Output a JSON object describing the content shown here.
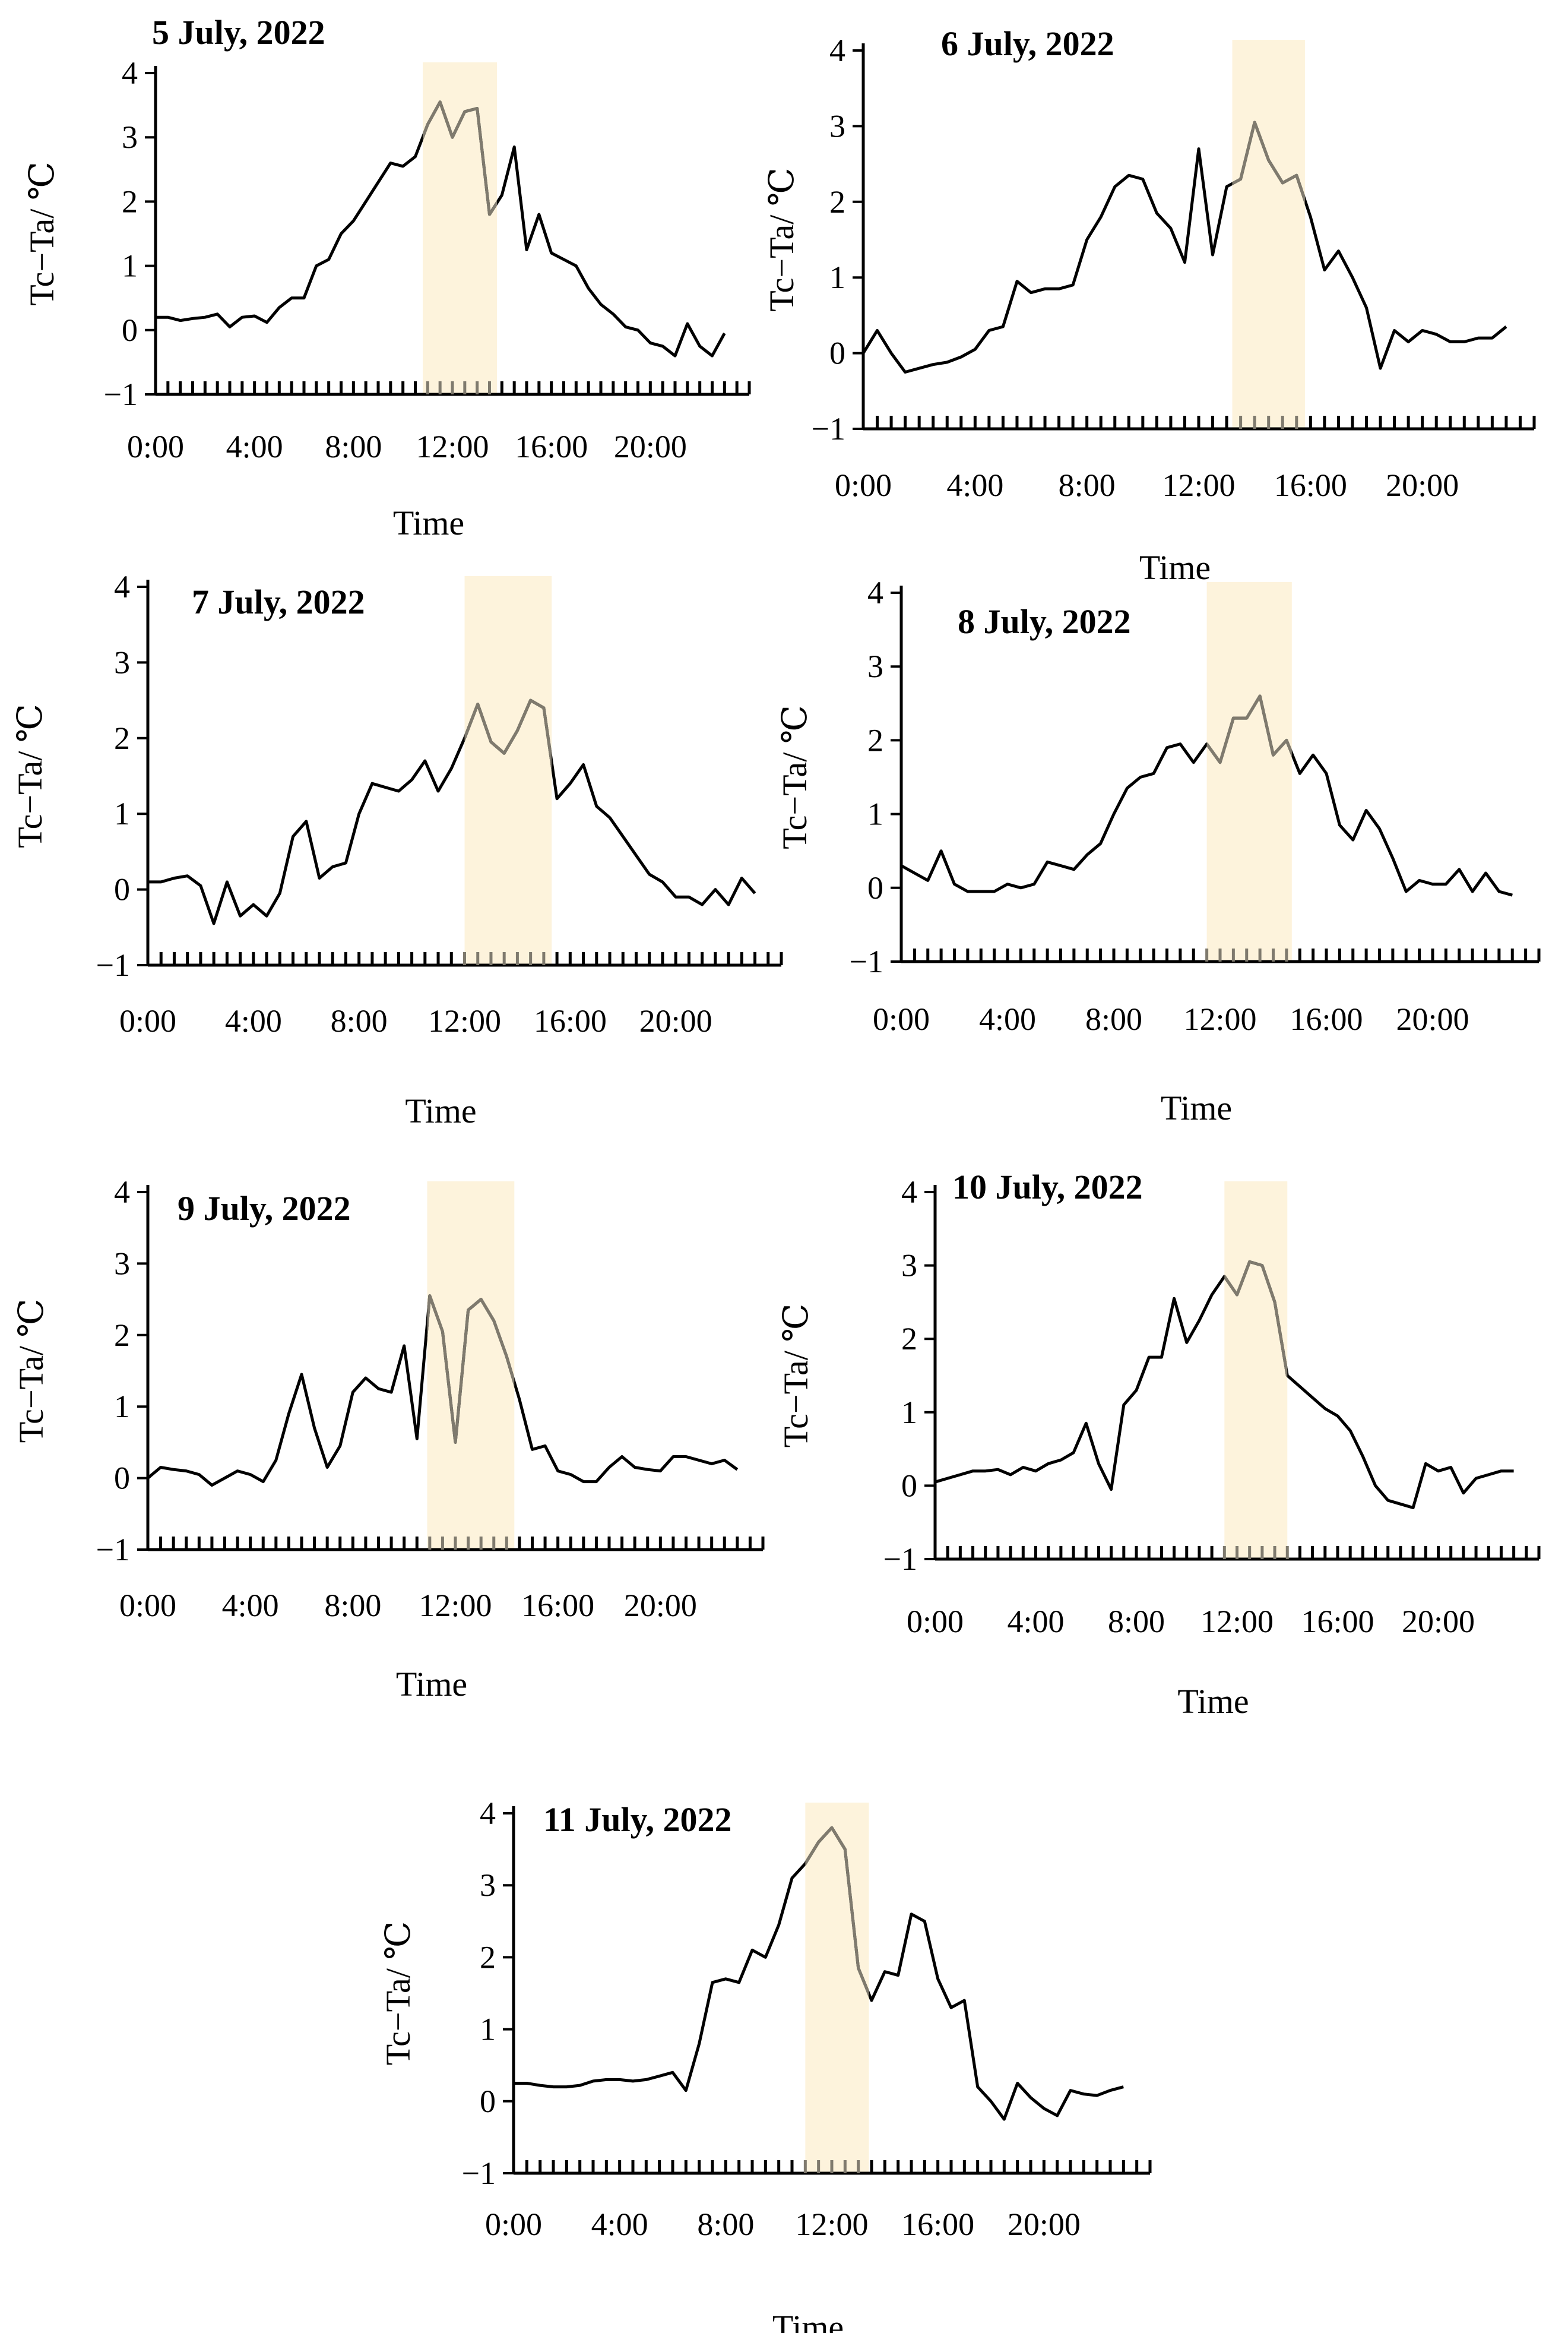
{
  "figure": {
    "x_tick_labels": [
      "0:00",
      "4:00",
      "8:00",
      "12:00",
      "16:00",
      "20:00"
    ],
    "y_tick_labels": [
      "4",
      "3",
      "2",
      "1",
      "0",
      "−1"
    ],
    "x_axis_title": "Time",
    "y_axis_title": "Tc−Ta/ ℃"
  },
  "colors": {
    "line": "#000000",
    "highlight": "#fdf3dc",
    "highlight_line": "#7f7a6e"
  },
  "chart_data": [
    {
      "type": "line",
      "title": "5 July, 2022",
      "xlabel": "Time",
      "ylabel": "Tc−Ta/ ℃",
      "ylim": [
        -1,
        4
      ],
      "xlim": [
        0,
        24
      ],
      "highlight": [
        10.8,
        13.8
      ],
      "x": [
        0,
        0.5,
        1,
        1.5,
        2,
        2.5,
        3,
        3.5,
        4,
        4.5,
        5,
        5.5,
        6,
        6.5,
        7,
        7.5,
        8,
        8.5,
        9,
        9.5,
        10,
        10.5,
        11,
        11.5,
        12,
        12.5,
        13,
        13.5,
        14,
        14.5,
        15,
        15.5,
        16,
        16.5,
        17,
        17.5,
        18,
        18.5,
        19,
        19.5,
        20,
        20.5,
        21,
        21.5,
        22,
        22.5,
        23
      ],
      "values": [
        0.2,
        0.2,
        0.15,
        0.18,
        0.2,
        0.25,
        0.05,
        0.2,
        0.22,
        0.12,
        0.35,
        0.5,
        0.5,
        1,
        1.1,
        1.5,
        1.7,
        2,
        2.3,
        2.6,
        2.55,
        2.7,
        3.2,
        3.55,
        3,
        3.4,
        3.45,
        1.8,
        2.1,
        2.85,
        1.25,
        1.8,
        1.2,
        1.1,
        1,
        0.65,
        0.4,
        0.25,
        0.05,
        0,
        -0.2,
        -0.25,
        -0.4,
        0.1,
        -0.25,
        -0.4,
        -0.05
      ]
    },
    {
      "type": "line",
      "title": "6 July, 2022",
      "xlabel": "Time",
      "ylabel": "Tc−Ta/ ℃",
      "ylim": [
        -1,
        4
      ],
      "xlim": [
        0,
        24
      ],
      "highlight": [
        13.2,
        15.8
      ],
      "x": [
        0,
        0.5,
        1,
        1.5,
        2,
        2.5,
        3,
        3.5,
        4,
        4.5,
        5,
        5.5,
        6,
        6.5,
        7,
        7.5,
        8,
        8.5,
        9,
        9.5,
        10,
        10.5,
        11,
        11.5,
        12,
        12.5,
        13,
        13.5,
        14,
        14.5,
        15,
        15.5,
        16,
        16.5,
        17,
        17.5,
        18,
        18.5,
        19,
        19.5,
        20,
        20.5,
        21,
        21.5,
        22,
        22.5,
        23
      ],
      "values": [
        0,
        0.3,
        0,
        -0.25,
        -0.2,
        -0.15,
        -0.12,
        -0.05,
        0.05,
        0.3,
        0.35,
        0.95,
        0.8,
        0.85,
        0.85,
        0.9,
        1.5,
        1.8,
        2.2,
        2.35,
        2.3,
        1.85,
        1.65,
        1.2,
        2.7,
        1.3,
        2.2,
        2.3,
        3.05,
        2.55,
        2.25,
        2.35,
        1.8,
        1.1,
        1.35,
        1,
        0.6,
        -0.2,
        0.3,
        0.15,
        0.3,
        0.25,
        0.15,
        0.15,
        0.2,
        0.2,
        0.35
      ]
    },
    {
      "type": "line",
      "title": "7 July, 2022",
      "xlabel": "Time",
      "ylabel": "Tc−Ta/ ℃",
      "ylim": [
        -1,
        4
      ],
      "xlim": [
        0,
        24
      ],
      "highlight": [
        12,
        15.3
      ],
      "x": [
        0,
        0.5,
        1,
        1.5,
        2,
        2.5,
        3,
        3.5,
        4,
        4.5,
        5,
        5.5,
        6,
        6.5,
        7,
        7.5,
        8,
        8.5,
        9,
        9.5,
        10,
        10.5,
        11,
        11.5,
        12,
        12.5,
        13,
        13.5,
        14,
        14.5,
        15,
        15.5,
        16,
        16.5,
        17,
        17.5,
        18,
        18.5,
        19,
        19.5,
        20,
        20.5,
        21,
        21.5,
        22,
        22.5,
        23
      ],
      "values": [
        0.1,
        0.1,
        0.15,
        0.18,
        0.05,
        -0.45,
        0.1,
        -0.35,
        -0.2,
        -0.35,
        -0.05,
        0.7,
        0.9,
        0.15,
        0.3,
        0.35,
        1,
        1.4,
        1.35,
        1.3,
        1.45,
        1.7,
        1.3,
        1.6,
        2,
        2.45,
        1.95,
        1.8,
        2.1,
        2.5,
        2.4,
        1.2,
        1.4,
        1.65,
        1.1,
        0.95,
        0.7,
        0.45,
        0.2,
        0.1,
        -0.1,
        -0.1,
        -0.2,
        0,
        -0.2,
        0.15,
        -0.05
      ]
    },
    {
      "type": "line",
      "title": "8 July, 2022",
      "xlabel": "Time",
      "ylabel": "Tc−Ta/ ℃",
      "ylim": [
        -1,
        4
      ],
      "xlim": [
        0,
        24
      ],
      "highlight": [
        11.5,
        14.7
      ],
      "x": [
        0,
        0.5,
        1,
        1.5,
        2,
        2.5,
        3,
        3.5,
        4,
        4.5,
        5,
        5.5,
        6,
        6.5,
        7,
        7.5,
        8,
        8.5,
        9,
        9.5,
        10,
        10.5,
        11,
        11.5,
        12,
        12.5,
        13,
        13.5,
        14,
        14.5,
        15,
        15.5,
        16,
        16.5,
        17,
        17.5,
        18,
        18.5,
        19,
        19.5,
        20,
        20.5,
        21,
        21.5,
        22,
        22.5,
        23
      ],
      "values": [
        0.3,
        0.2,
        0.1,
        0.5,
        0.05,
        -0.05,
        -0.05,
        -0.05,
        0.05,
        0,
        0.05,
        0.35,
        0.3,
        0.25,
        0.45,
        0.6,
        1,
        1.35,
        1.5,
        1.55,
        1.9,
        1.95,
        1.7,
        1.95,
        1.7,
        2.3,
        2.3,
        2.6,
        1.8,
        2,
        1.55,
        1.8,
        1.55,
        0.85,
        0.65,
        1.05,
        0.8,
        0.4,
        -0.05,
        0.1,
        0.05,
        0.05,
        0.25,
        -0.05,
        0.2,
        -0.05,
        -0.1
      ]
    },
    {
      "type": "line",
      "title": "9 July, 2022",
      "xlabel": "Time",
      "ylabel": "Tc−Ta/ ℃",
      "ylim": [
        -1,
        4
      ],
      "xlim": [
        0,
        24
      ],
      "highlight": [
        10.9,
        14.3
      ],
      "x": [
        0,
        0.5,
        1,
        1.5,
        2,
        2.5,
        3,
        3.5,
        4,
        4.5,
        5,
        5.5,
        6,
        6.5,
        7,
        7.5,
        8,
        8.5,
        9,
        9.5,
        10,
        10.5,
        11,
        11.5,
        12,
        12.5,
        13,
        13.5,
        14,
        14.5,
        15,
        15.5,
        16,
        16.5,
        17,
        17.5,
        18,
        18.5,
        19,
        19.5,
        20,
        20.5,
        21,
        21.5,
        22,
        22.5,
        23
      ],
      "values": [
        0,
        0.15,
        0.12,
        0.1,
        0.05,
        -0.1,
        0,
        0.1,
        0.05,
        -0.05,
        0.25,
        0.9,
        1.45,
        0.7,
        0.15,
        0.45,
        1.2,
        1.4,
        1.25,
        1.2,
        1.85,
        0.55,
        2.55,
        2.05,
        0.5,
        2.35,
        2.5,
        2.2,
        1.7,
        1.1,
        0.4,
        0.45,
        0.1,
        0.05,
        -0.05,
        -0.05,
        0.15,
        0.3,
        0.15,
        0.12,
        0.1,
        0.3,
        0.3,
        0.25,
        0.2,
        0.25,
        0.12
      ]
    },
    {
      "type": "line",
      "title": "10 July, 2022",
      "xlabel": "Time",
      "ylabel": "Tc−Ta/ ℃",
      "ylim": [
        -1,
        4
      ],
      "xlim": [
        0,
        24
      ],
      "highlight": [
        11.5,
        14
      ],
      "x": [
        0,
        0.5,
        1,
        1.5,
        2,
        2.5,
        3,
        3.5,
        4,
        4.5,
        5,
        5.5,
        6,
        6.5,
        7,
        7.5,
        8,
        8.5,
        9,
        9.5,
        10,
        10.5,
        11,
        11.5,
        12,
        12.5,
        13,
        13.5,
        14,
        14.5,
        15,
        15.5,
        16,
        16.5,
        17,
        17.5,
        18,
        18.5,
        19,
        19.5,
        20,
        20.5,
        21,
        21.5,
        22,
        22.5,
        23
      ],
      "values": [
        0.05,
        0.1,
        0.15,
        0.2,
        0.2,
        0.22,
        0.15,
        0.25,
        0.2,
        0.3,
        0.35,
        0.45,
        0.85,
        0.3,
        -0.05,
        1.1,
        1.3,
        1.75,
        1.75,
        2.55,
        1.95,
        2.25,
        2.6,
        2.85,
        2.6,
        3.05,
        3,
        2.5,
        1.5,
        1.35,
        1.2,
        1.05,
        0.95,
        0.75,
        0.4,
        0,
        -0.2,
        -0.25,
        -0.3,
        0.3,
        0.2,
        0.25,
        -0.1,
        0.1,
        0.15,
        0.2,
        0.2
      ]
    },
    {
      "type": "line",
      "title": "11 July, 2022",
      "xlabel": "Time",
      "ylabel": "Tc−Ta/ ℃",
      "ylim": [
        -1,
        4
      ],
      "xlim": [
        0,
        24
      ],
      "highlight": [
        11,
        13.4
      ],
      "x": [
        0,
        0.5,
        1,
        1.5,
        2,
        2.5,
        3,
        3.5,
        4,
        4.5,
        5,
        5.5,
        6,
        6.5,
        7,
        7.5,
        8,
        8.5,
        9,
        9.5,
        10,
        10.5,
        11,
        11.5,
        12,
        12.5,
        13,
        13.5,
        14,
        14.5,
        15,
        15.5,
        16,
        16.5,
        17,
        17.5,
        18,
        18.5,
        19,
        19.5,
        20,
        20.5,
        21,
        21.5,
        22,
        22.5,
        23
      ],
      "values": [
        0.25,
        0.25,
        0.22,
        0.2,
        0.2,
        0.22,
        0.28,
        0.3,
        0.3,
        0.28,
        0.3,
        0.35,
        0.4,
        0.15,
        0.8,
        1.65,
        1.7,
        1.65,
        2.1,
        2,
        2.45,
        3.1,
        3.3,
        3.6,
        3.8,
        3.5,
        1.85,
        1.4,
        1.8,
        1.75,
        2.6,
        2.5,
        1.7,
        1.3,
        1.4,
        0.2,
        0,
        -0.25,
        0.25,
        0.05,
        -0.1,
        -0.2,
        0.15,
        0.1,
        0.08,
        0.15,
        0.2
      ]
    }
  ]
}
